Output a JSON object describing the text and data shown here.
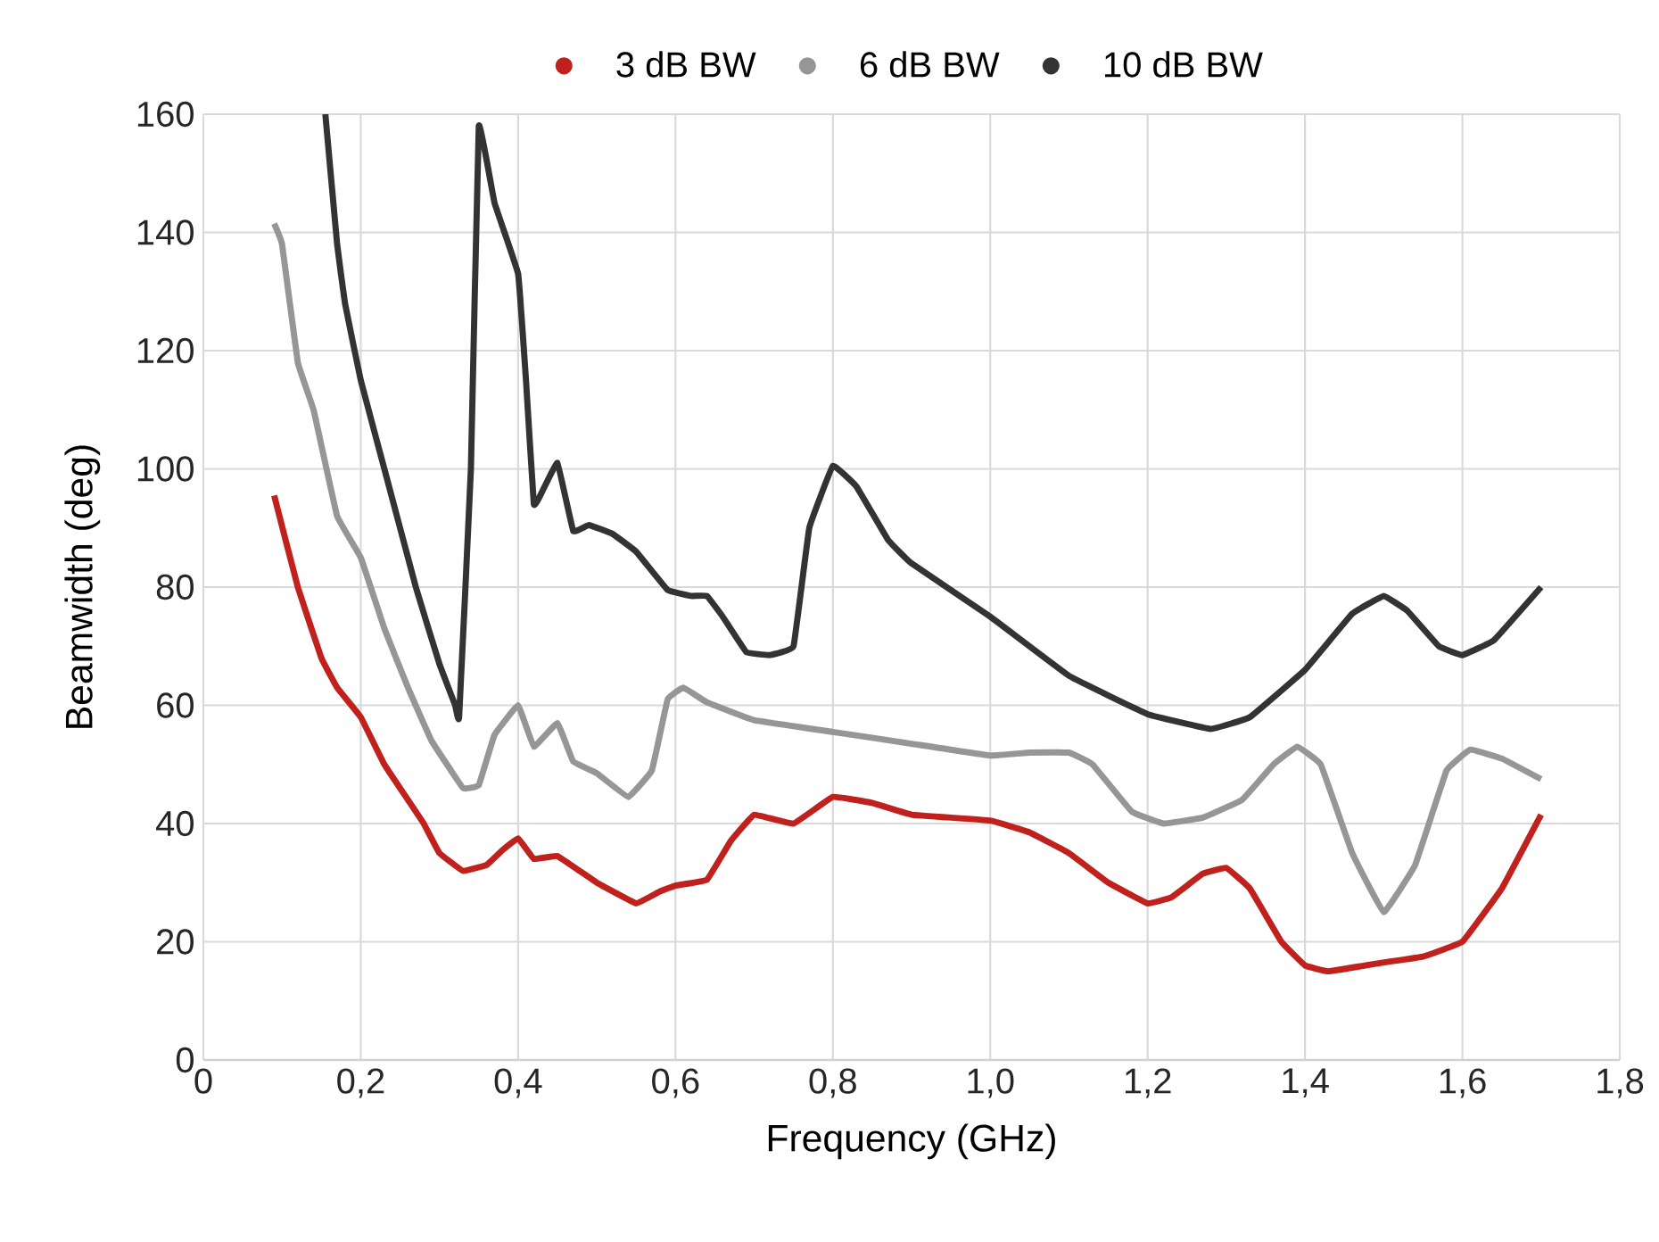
{
  "chart_data": {
    "type": "line",
    "xlabel": "Frequency (GHz)",
    "ylabel": "Beamwidth (deg)",
    "xlim": [
      0,
      1.8
    ],
    "ylim": [
      0,
      160
    ],
    "xticks": [
      0,
      {
        "value": 0.2,
        "label": "0,2"
      },
      {
        "value": 0.4,
        "label": "0,4"
      },
      {
        "value": 0.6,
        "label": "0,6"
      },
      {
        "value": 0.8,
        "label": "0,8"
      },
      {
        "value": 1.0,
        "label": "1,0"
      },
      {
        "value": 1.2,
        "label": "1,2"
      },
      {
        "value": 1.4,
        "label": "1,4"
      },
      {
        "value": 1.6,
        "label": "1,6"
      },
      {
        "value": 1.8,
        "label": "1,8"
      }
    ],
    "yticks": [
      0,
      20,
      40,
      60,
      80,
      100,
      120,
      140,
      160
    ],
    "grid": true,
    "legend": "top",
    "series": [
      {
        "name": "3 dB BW",
        "color": "#c0211d",
        "x": [
          0.09,
          0.12,
          0.15,
          0.17,
          0.2,
          0.23,
          0.26,
          0.28,
          0.3,
          0.33,
          0.36,
          0.38,
          0.4,
          0.42,
          0.45,
          0.5,
          0.55,
          0.58,
          0.6,
          0.64,
          0.67,
          0.7,
          0.75,
          0.8,
          0.85,
          0.9,
          1.0,
          1.05,
          1.1,
          1.15,
          1.2,
          1.23,
          1.27,
          1.3,
          1.33,
          1.37,
          1.4,
          1.43,
          1.5,
          1.55,
          1.6,
          1.65,
          1.7
        ],
        "values": [
          95.5,
          80,
          68,
          63,
          58,
          50,
          44,
          40,
          35,
          32,
          33,
          35.5,
          37.5,
          34,
          34.5,
          30,
          26.5,
          28.5,
          29.5,
          30.5,
          37,
          41.5,
          40,
          44.5,
          43.5,
          41.5,
          40.5,
          38.5,
          35,
          30,
          26.5,
          27.5,
          31.5,
          32.5,
          29,
          20,
          16,
          15,
          16.5,
          17.5,
          20,
          29,
          41.5
        ]
      },
      {
        "name": "6 dB BW",
        "color": "#969696",
        "x": [
          0.09,
          0.1,
          0.12,
          0.14,
          0.17,
          0.2,
          0.23,
          0.26,
          0.29,
          0.33,
          0.35,
          0.37,
          0.4,
          0.42,
          0.45,
          0.47,
          0.5,
          0.54,
          0.57,
          0.59,
          0.61,
          0.64,
          0.7,
          0.8,
          0.9,
          1.0,
          1.05,
          1.1,
          1.13,
          1.18,
          1.22,
          1.27,
          1.32,
          1.36,
          1.39,
          1.42,
          1.46,
          1.5,
          1.54,
          1.58,
          1.61,
          1.65,
          1.7
        ],
        "values": [
          141.5,
          138,
          118,
          110,
          92,
          85,
          73,
          63,
          54,
          46,
          46.5,
          55,
          60,
          53,
          57,
          50.5,
          48.5,
          44.5,
          49,
          61,
          63,
          60.5,
          57.5,
          55.5,
          53.5,
          51.5,
          52,
          52,
          50,
          42,
          40,
          41,
          44,
          50,
          53,
          50,
          35,
          25,
          33,
          49,
          52.5,
          51,
          47.5
        ]
      },
      {
        "name": "10 dB BW",
        "color": "#333333",
        "x": [
          0.155,
          0.17,
          0.18,
          0.2,
          0.23,
          0.27,
          0.3,
          0.32,
          0.325,
          0.34,
          0.35,
          0.37,
          0.4,
          0.41,
          0.42,
          0.43,
          0.45,
          0.47,
          0.49,
          0.52,
          0.55,
          0.59,
          0.62,
          0.64,
          0.66,
          0.69,
          0.72,
          0.75,
          0.77,
          0.8,
          0.83,
          0.87,
          0.9,
          1.0,
          1.1,
          1.2,
          1.28,
          1.33,
          1.4,
          1.46,
          1.5,
          1.53,
          1.57,
          1.6,
          1.64,
          1.7
        ],
        "values": [
          160,
          138,
          128,
          115,
          100,
          80,
          67,
          60,
          58,
          100,
          158,
          145,
          133,
          115,
          94,
          96,
          101,
          89.5,
          90.5,
          89,
          86,
          79.5,
          78.5,
          78.5,
          75,
          69,
          68.5,
          70,
          90,
          100.5,
          97,
          88,
          84,
          75,
          65,
          58.5,
          56,
          58,
          66,
          75.5,
          78.5,
          76,
          70,
          68.5,
          71,
          80
        ]
      }
    ]
  }
}
